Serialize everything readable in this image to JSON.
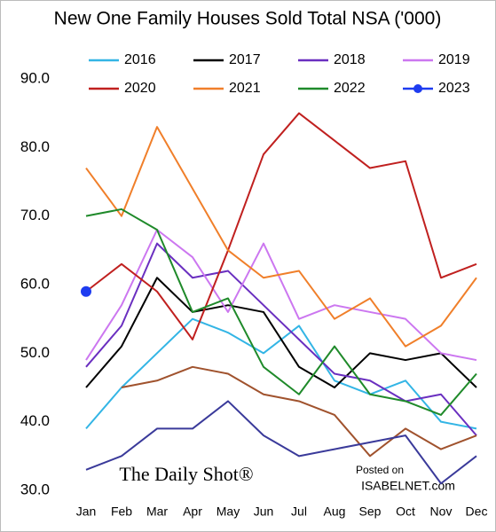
{
  "chart_data": {
    "type": "line",
    "title": "New One Family Houses Sold Total NSA ('000)",
    "categories": [
      "Jan",
      "Feb",
      "Mar",
      "Apr",
      "May",
      "Jun",
      "Jul",
      "Aug",
      "Sep",
      "Oct",
      "Nov",
      "Dec"
    ],
    "series": [
      {
        "name": "2016",
        "color": "#33b5e5",
        "values": [
          39,
          45,
          50,
          55,
          53,
          50,
          54,
          46,
          44,
          46,
          40,
          39
        ]
      },
      {
        "name": "2017",
        "color": "#000000",
        "values": [
          45,
          51,
          61,
          56,
          57,
          56,
          48,
          45,
          50,
          49,
          50,
          45
        ]
      },
      {
        "name": "2018",
        "color": "#6a2fc0",
        "values": [
          48,
          54,
          66,
          61,
          62,
          57,
          52,
          47,
          46,
          43,
          44,
          38
        ]
      },
      {
        "name": "2019",
        "color": "#cc77f0",
        "values": [
          49,
          57,
          68,
          64,
          56,
          66,
          55,
          57,
          56,
          55,
          50,
          49
        ]
      },
      {
        "name": "2020",
        "color": "#c0201f",
        "values": [
          59,
          63,
          59,
          52,
          65,
          79,
          85,
          81,
          77,
          78,
          61,
          63
        ]
      },
      {
        "name": "2021",
        "color": "#f07f2a",
        "values": [
          77,
          70,
          83,
          74,
          65,
          61,
          62,
          55,
          58,
          51,
          54,
          61
        ]
      },
      {
        "name": "2022",
        "color": "#1f8a2a",
        "values": [
          70,
          71,
          68,
          56,
          58,
          48,
          44,
          51,
          44,
          43,
          41,
          47
        ]
      },
      {
        "name": "2023",
        "color": "#1e3cf0",
        "values": [
          59,
          null,
          null,
          null,
          null,
          null,
          null,
          null,
          null,
          null,
          null,
          null
        ]
      },
      {
        "color": "#a0522d",
        "values": [
          null,
          45,
          46,
          48,
          47,
          44,
          43,
          41,
          35,
          39,
          36,
          38
        ]
      },
      {
        "color": "#3a3a9a",
        "values": [
          33,
          35,
          39,
          39,
          43,
          38,
          35,
          36,
          37,
          38,
          31,
          35
        ]
      }
    ],
    "ylim": [
      30,
      90
    ],
    "yticks": [
      {
        "value": 30,
        "label": "30.0"
      },
      {
        "value": 40,
        "label": "40.0"
      },
      {
        "value": 50,
        "label": "50.0"
      },
      {
        "value": 60,
        "label": "60.0"
      },
      {
        "value": 70,
        "label": "70.0"
      },
      {
        "value": 80,
        "label": "80.0"
      },
      {
        "value": 90,
        "label": "90.0"
      }
    ],
    "grid": false,
    "annotations": [
      "The Daily Shot®",
      "Posted on",
      "ISABELNET.com"
    ]
  }
}
